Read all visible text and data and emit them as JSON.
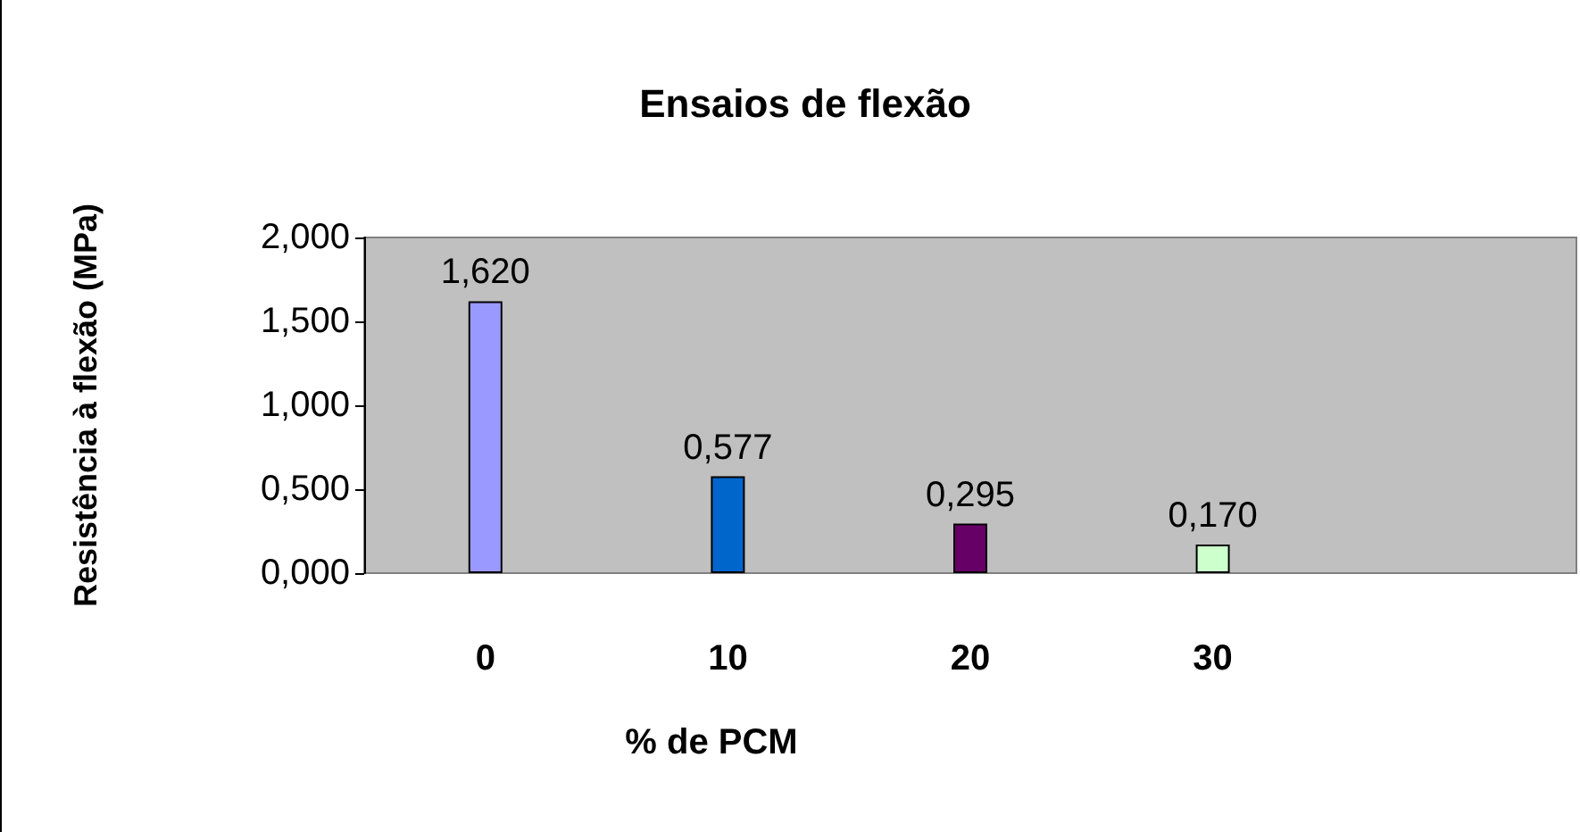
{
  "chart_data": {
    "type": "bar",
    "title": "Ensaios de flexão",
    "xlabel": "% de PCM",
    "ylabel": "Resistência à flexão (MPa)",
    "categories": [
      "0",
      "10",
      "20",
      "30",
      null
    ],
    "values": [
      1.62,
      0.577,
      0.295,
      0.17,
      null
    ],
    "colors": [
      "#9999ff",
      "#0066cc",
      "#660066",
      "#ccffcc",
      null
    ],
    "value_labels": [
      "1,620",
      "0,577",
      "0,295",
      "0,170",
      null
    ],
    "ylim": [
      0,
      2
    ],
    "yticks": [
      {
        "value": 0,
        "label": "0,000"
      },
      {
        "value": 0.5,
        "label": "0,500"
      },
      {
        "value": 1,
        "label": "1,000"
      },
      {
        "value": 1.5,
        "label": "1,500"
      },
      {
        "value": 2,
        "label": "2,000"
      }
    ],
    "grid": false
  }
}
